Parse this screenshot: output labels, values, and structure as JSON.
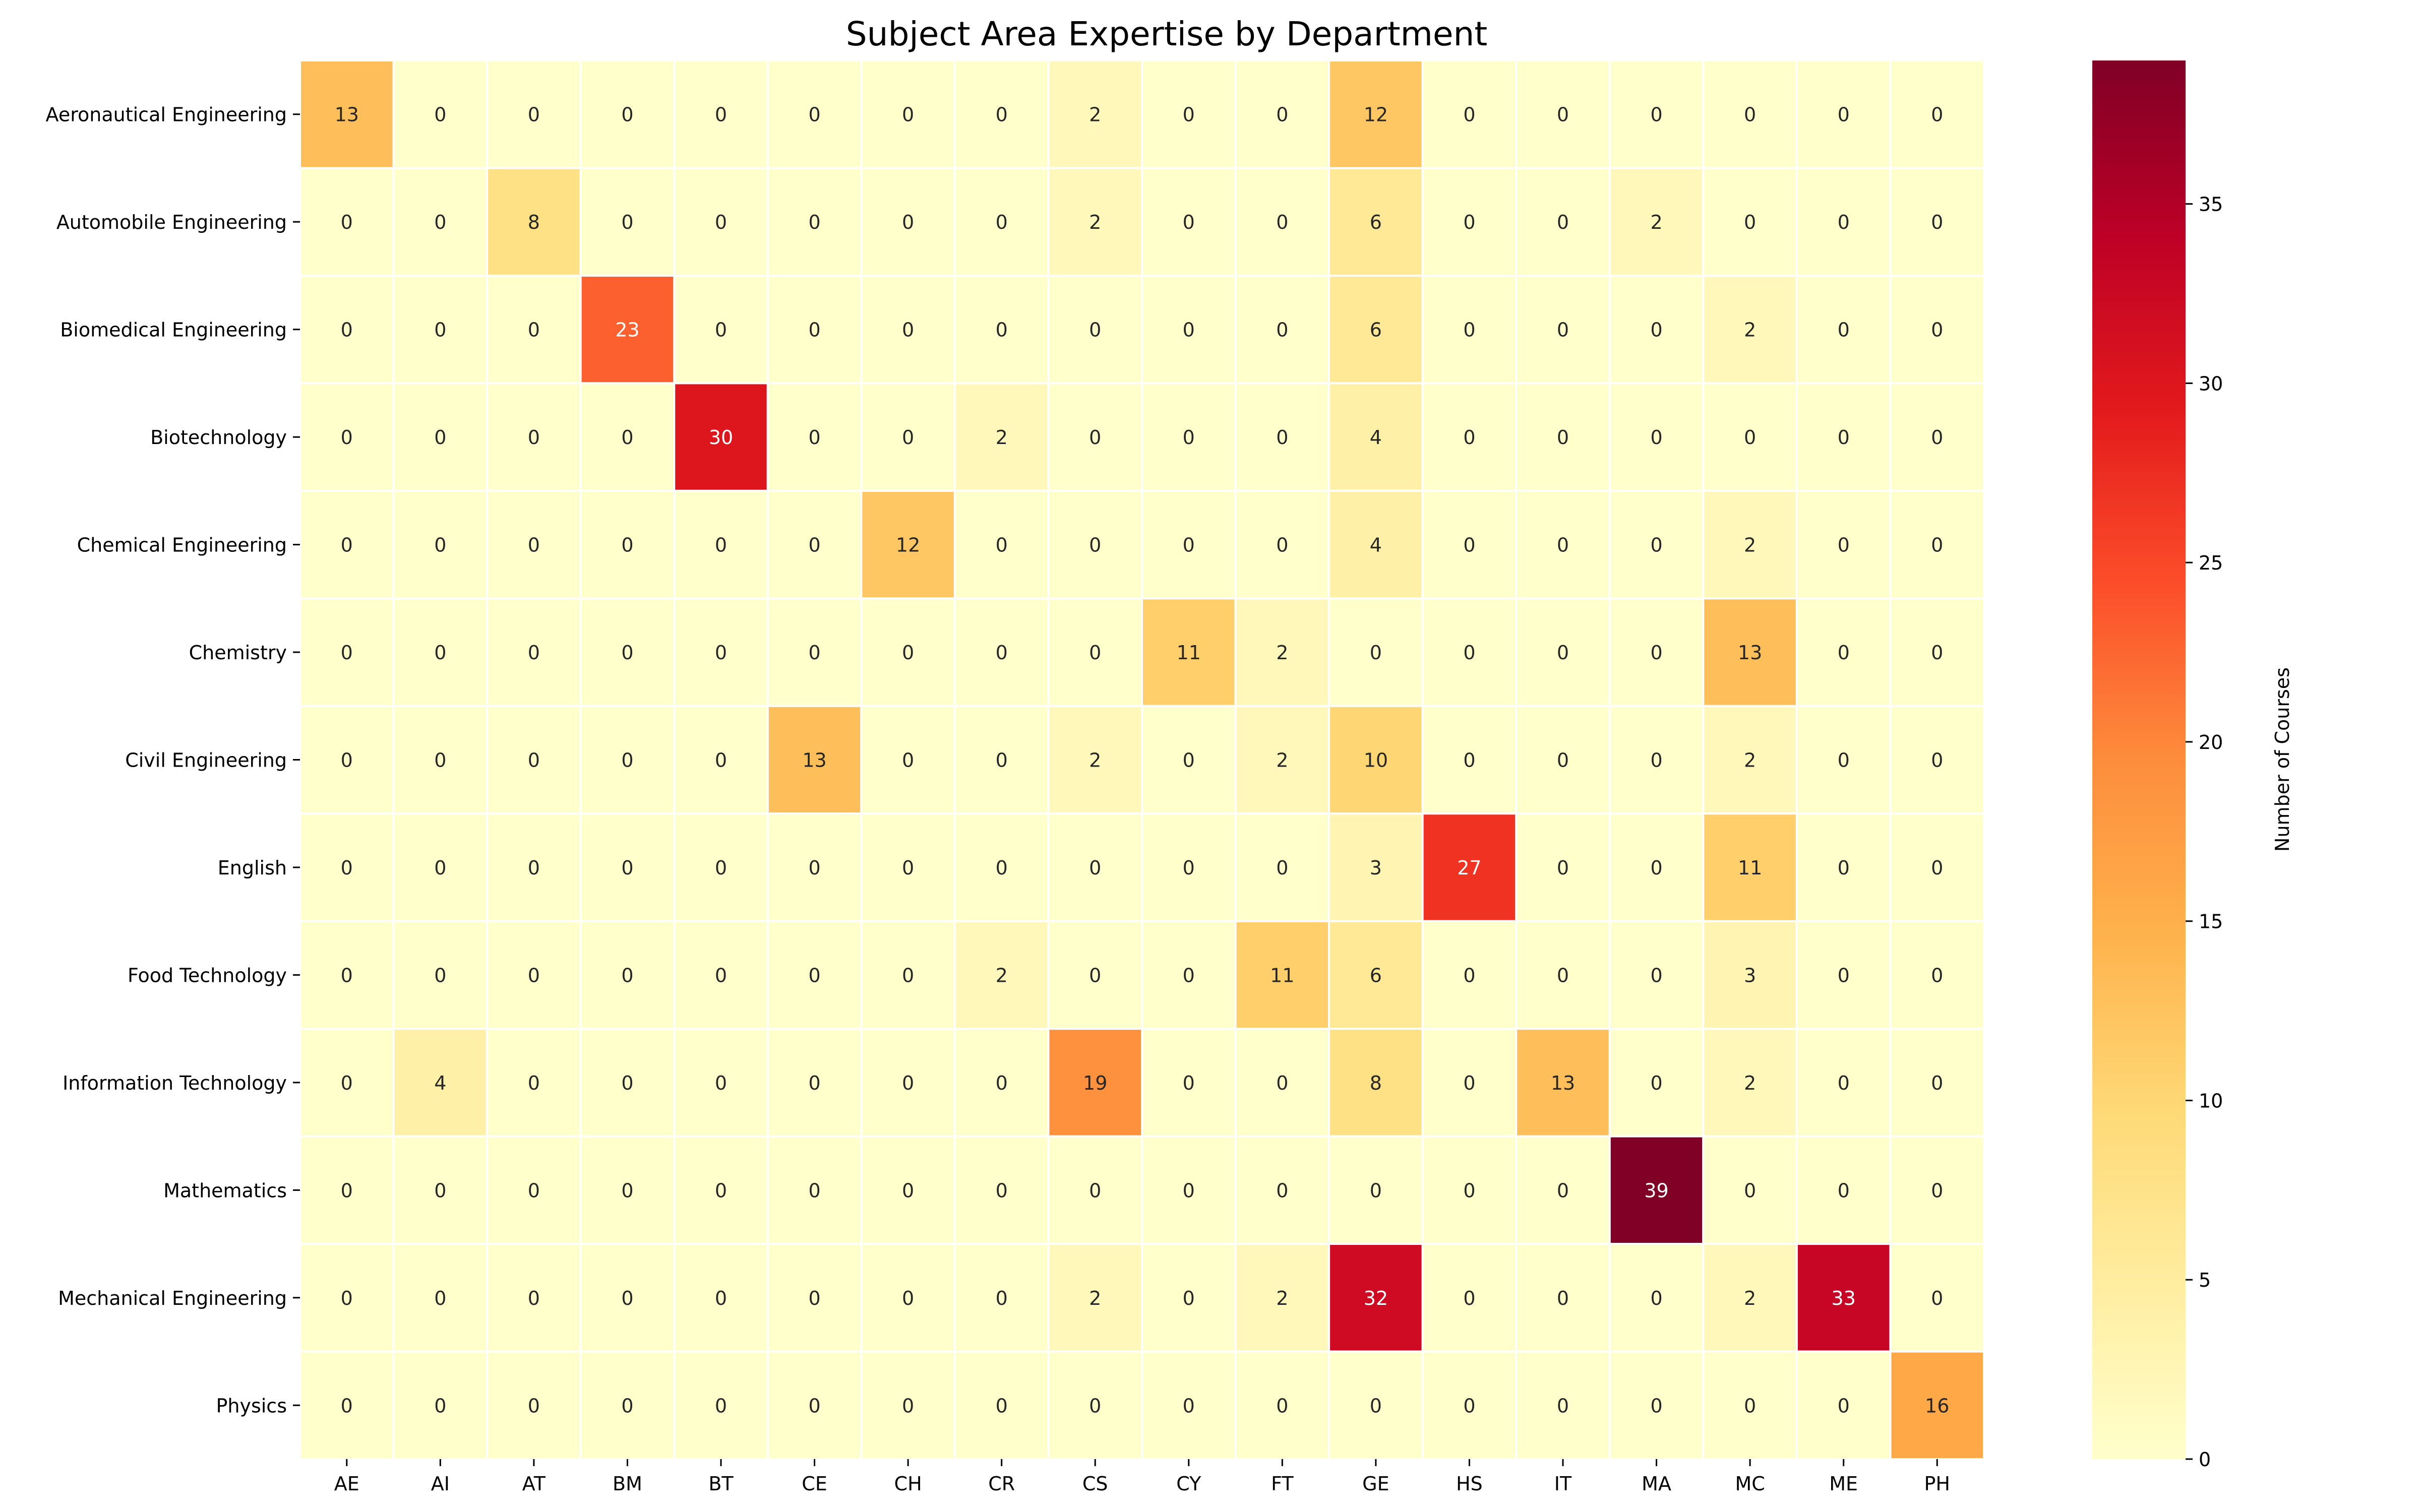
{
  "chart_data": {
    "type": "heatmap",
    "title": "Subject Area Expertise by Department",
    "xlabel": "",
    "ylabel": "",
    "colorbar_label": "Number of Courses",
    "colorbar_range": [
      0,
      39
    ],
    "colorbar_ticks": [
      0,
      5,
      10,
      15,
      20,
      25,
      30,
      35
    ],
    "colormap": "YlOrRd",
    "colormap_stops": [
      "#ffffcc",
      "#ffeda0",
      "#fed976",
      "#feb24c",
      "#fd8d3c",
      "#fc4e2a",
      "#e31a1c",
      "#bd0026",
      "#800026"
    ],
    "grid": false,
    "legend": "colorbar-right",
    "x_categories": [
      "AE",
      "AI",
      "AT",
      "BM",
      "BT",
      "CE",
      "CH",
      "CR",
      "CS",
      "CY",
      "FT",
      "GE",
      "HS",
      "IT",
      "MA",
      "MC",
      "ME",
      "PH"
    ],
    "y_categories": [
      "Aeronautical Engineering",
      "Automobile Engineering",
      "Biomedical Engineering",
      "Biotechnology",
      "Chemical Engineering",
      "Chemistry",
      "Civil Engineering",
      "English",
      "Food Technology",
      "Information Technology",
      "Mathematics",
      "Mechanical Engineering",
      "Physics"
    ],
    "values": [
      [
        13,
        0,
        0,
        0,
        0,
        0,
        0,
        0,
        2,
        0,
        0,
        12,
        0,
        0,
        0,
        0,
        0,
        0
      ],
      [
        0,
        0,
        8,
        0,
        0,
        0,
        0,
        0,
        2,
        0,
        0,
        6,
        0,
        0,
        2,
        0,
        0,
        0
      ],
      [
        0,
        0,
        0,
        23,
        0,
        0,
        0,
        0,
        0,
        0,
        0,
        6,
        0,
        0,
        0,
        2,
        0,
        0
      ],
      [
        0,
        0,
        0,
        0,
        30,
        0,
        0,
        2,
        0,
        0,
        0,
        4,
        0,
        0,
        0,
        0,
        0,
        0
      ],
      [
        0,
        0,
        0,
        0,
        0,
        0,
        12,
        0,
        0,
        0,
        0,
        4,
        0,
        0,
        0,
        2,
        0,
        0
      ],
      [
        0,
        0,
        0,
        0,
        0,
        0,
        0,
        0,
        0,
        11,
        2,
        0,
        0,
        0,
        0,
        13,
        0,
        0
      ],
      [
        0,
        0,
        0,
        0,
        0,
        13,
        0,
        0,
        2,
        0,
        2,
        10,
        0,
        0,
        0,
        2,
        0,
        0
      ],
      [
        0,
        0,
        0,
        0,
        0,
        0,
        0,
        0,
        0,
        0,
        0,
        3,
        27,
        0,
        0,
        11,
        0,
        0
      ],
      [
        0,
        0,
        0,
        0,
        0,
        0,
        0,
        2,
        0,
        0,
        11,
        6,
        0,
        0,
        0,
        3,
        0,
        0
      ],
      [
        0,
        4,
        0,
        0,
        0,
        0,
        0,
        0,
        19,
        0,
        0,
        8,
        0,
        13,
        0,
        2,
        0,
        0
      ],
      [
        0,
        0,
        0,
        0,
        0,
        0,
        0,
        0,
        0,
        0,
        0,
        0,
        0,
        0,
        39,
        0,
        0,
        0
      ],
      [
        0,
        0,
        0,
        0,
        0,
        0,
        0,
        0,
        2,
        0,
        2,
        32,
        0,
        0,
        0,
        2,
        33,
        0
      ],
      [
        0,
        0,
        0,
        0,
        0,
        0,
        0,
        0,
        0,
        0,
        0,
        0,
        0,
        0,
        0,
        0,
        0,
        16
      ]
    ]
  }
}
